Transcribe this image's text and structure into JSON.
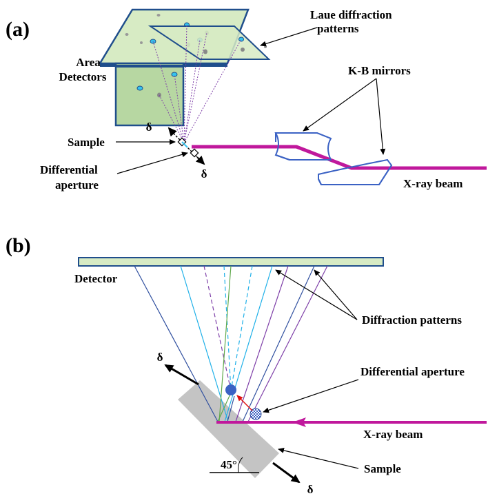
{
  "panel_a": {
    "tag": "(a)",
    "labels": {
      "laue_line1": "Laue diffraction",
      "laue_line2": "patterns",
      "area_line1": "Area",
      "area_line2": "Detectors",
      "kb_mirrors": "K-B mirrors",
      "sample": "Sample",
      "diff_line1": "Differential",
      "diff_line2": "aperture",
      "xray": "X-ray beam",
      "delta_top": "δ",
      "delta_bottom": "δ"
    }
  },
  "panel_b": {
    "tag": "(b)",
    "labels": {
      "detector": "Detector",
      "diffraction_patterns": "Diffraction patterns",
      "differential_aperture": "Differential aperture",
      "xray": "X-ray beam",
      "sample": "Sample",
      "angle": "45°",
      "delta_top": "δ",
      "delta_bottom": "δ"
    }
  },
  "colors": {
    "beam": "#c0189c",
    "detector_fill": "#d7ebc4",
    "detector_stroke": "#1f4e8c",
    "mirror": "#3b62c4",
    "sample_gray": "#c4c4c4",
    "ray_dark_blue": "#2f4f9f",
    "ray_cyan": "#1fb0e8",
    "ray_purple": "#7e3fa8",
    "ray_green": "#5ea84a"
  }
}
